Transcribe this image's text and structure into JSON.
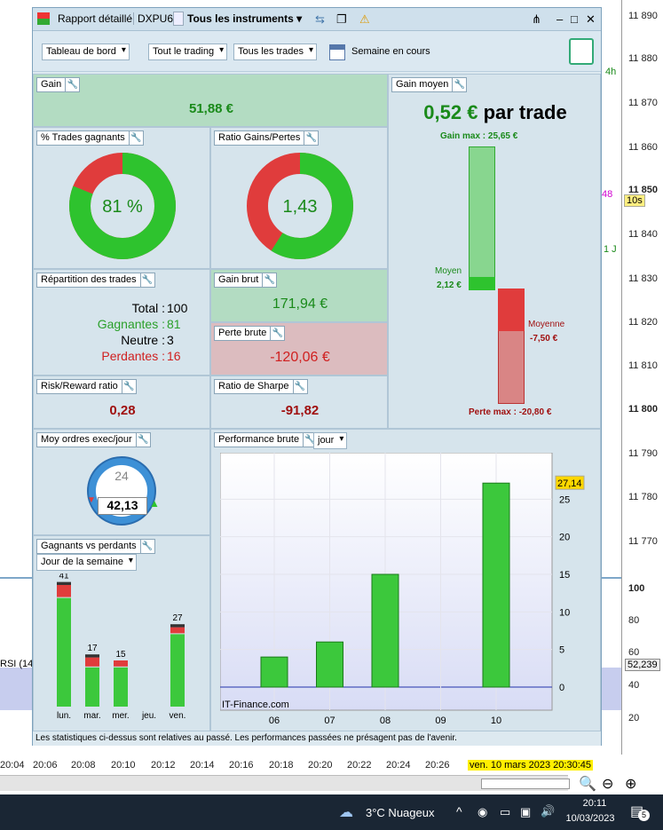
{
  "window": {
    "title_report": "Rapport détaillé",
    "title_account": "DXPU6",
    "title_instruments": "Tous les instruments"
  },
  "toolbar": {
    "dashboard": "Tableau de bord",
    "trading": "Tout le trading",
    "trades": "Tous les trades",
    "period": "Semaine en cours"
  },
  "panels": {
    "gain": {
      "title": "Gain",
      "value": "51,88 €"
    },
    "gain_moyen": {
      "title": "Gain moyen",
      "value": "0,52 €",
      "suffix": "par trade",
      "gain_max_label": "Gain max :",
      "gain_max": "25,65 €",
      "moyen_label": "Moyen",
      "moyen": "2,12 €",
      "moyenne_label": "Moyenne",
      "moyenne": "-7,50 €",
      "perte_max_label": "Perte max :",
      "perte_max": "-20,80 €"
    },
    "win_pct": {
      "title": "% Trades gagnants",
      "value": "81 %",
      "pct": 81
    },
    "ratio": {
      "title": "Ratio Gains/Pertes",
      "value": "1,43",
      "gain_frac": 0.59
    },
    "repartition": {
      "title": "Répartition des trades",
      "total_label": "Total :",
      "total": "100",
      "gagnantes_label": "Gagnantes :",
      "gagnantes": "81",
      "neutre_label": "Neutre :",
      "neutre": "3",
      "perdantes_label": "Perdantes :",
      "perdantes": "16"
    },
    "gain_brut": {
      "title": "Gain brut",
      "value": "171,94 €"
    },
    "perte_brute": {
      "title": "Perte brute",
      "value": "-120,06 €"
    },
    "risk_reward": {
      "title": "Risk/Reward ratio",
      "value": "0,28"
    },
    "sharpe": {
      "title": "Ratio de Sharpe",
      "value": "-91,82"
    },
    "moy_ordres": {
      "title": "Moy ordres exec/jour",
      "value": "42,13",
      "clock": "24"
    },
    "gvp": {
      "title": "Gagnants vs perdants",
      "selector": "Jour de la semaine"
    },
    "perf": {
      "title": "Performance brute",
      "selector": "jour",
      "watermark": "IT-Finance.com",
      "last_value": "27,14"
    }
  },
  "chart_data": [
    {
      "type": "bar",
      "title": "Performance brute",
      "categories": [
        "06",
        "07",
        "08",
        "09",
        "10"
      ],
      "values": [
        4.0,
        6.0,
        15.0,
        0,
        27.14
      ],
      "ylim": [
        0,
        30
      ],
      "yticks": [
        0,
        5,
        10,
        15,
        20,
        25
      ],
      "grid": true
    },
    {
      "type": "bar",
      "title": "Gagnants vs perdants",
      "categories": [
        "lun.",
        "mar.",
        "mer.",
        "jeu.",
        "ven."
      ],
      "totals": [
        41,
        17,
        15,
        0,
        27
      ],
      "series": [
        {
          "values": [
            36,
            13,
            13,
            0,
            24
          ]
        },
        {
          "values": [
            4,
            3,
            2,
            0,
            2
          ]
        },
        {
          "values": [
            1,
            1,
            0,
            0,
            1
          ]
        }
      ]
    }
  ],
  "footer": "Les statistiques ci-dessus sont relatives au passé. Les performances passées ne présagent pas de l'avenir.",
  "background": {
    "prices": [
      "11 890",
      "11 880",
      "11 870",
      "11 860",
      "11 850",
      "11 840",
      "11 830",
      "11 820",
      "11 810",
      "11 800",
      "11 790",
      "11 780",
      "11 770"
    ],
    "rsi_scale": [
      "100",
      "80",
      "60",
      "40",
      "20"
    ],
    "rsi_value": "52,239",
    "rsi_label": "RSI (14",
    "times": [
      "20:04",
      "20:06",
      "20:08",
      "20:10",
      "20:12",
      "20:14",
      "20:16",
      "20:18",
      "20:20",
      "20:22",
      "20:24",
      "20:26"
    ],
    "cursor_time": "ven. 10 mars 2023 20:30:45",
    "tf_4h": "4h",
    "tf_1j": "1 J",
    "tf_10s": "10s",
    "price_48": "48"
  },
  "taskbar": {
    "weather": "3°C  Nuageux",
    "time": "20:11",
    "date": "10/03/2023",
    "notif": "5"
  },
  "colors": {
    "green": "#2ec32e",
    "red": "#e03c3c",
    "dark_green": "#1a8a1a",
    "dark_red": "#a01010"
  }
}
